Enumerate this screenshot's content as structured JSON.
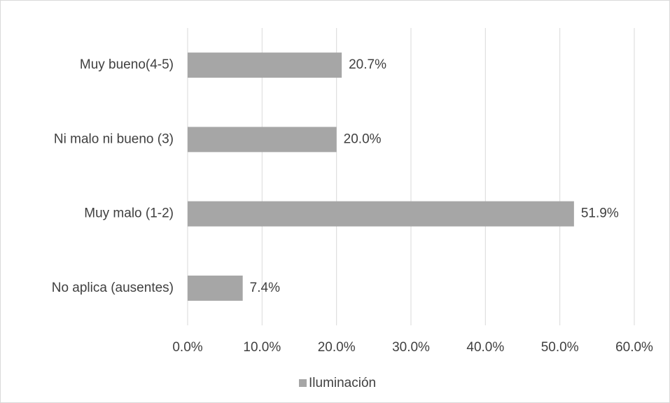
{
  "chart_data": {
    "type": "bar",
    "orientation": "horizontal",
    "categories": [
      "Muy bueno(4-5)",
      "Ni malo ni bueno (3)",
      "Muy malo (1-2)",
      "No aplica (ausentes)"
    ],
    "series": [
      {
        "name": "Iluminación",
        "color": "#a6a6a6",
        "values": [
          20.7,
          20.0,
          51.9,
          7.4
        ],
        "value_labels": [
          "20.7%",
          "20.0%",
          "51.9%",
          "7.4%"
        ]
      }
    ],
    "xlim": [
      0,
      60
    ],
    "xticks": [
      {
        "value": 0,
        "label": "0.0%"
      },
      {
        "value": 10,
        "label": "10.0%"
      },
      {
        "value": 20,
        "label": "20.0%"
      },
      {
        "value": 30,
        "label": "30.0%"
      },
      {
        "value": 40,
        "label": "40.0%"
      },
      {
        "value": 50,
        "label": "50.0%"
      },
      {
        "value": 60,
        "label": "60.0%"
      }
    ],
    "grid": true,
    "legend": "bottom"
  }
}
